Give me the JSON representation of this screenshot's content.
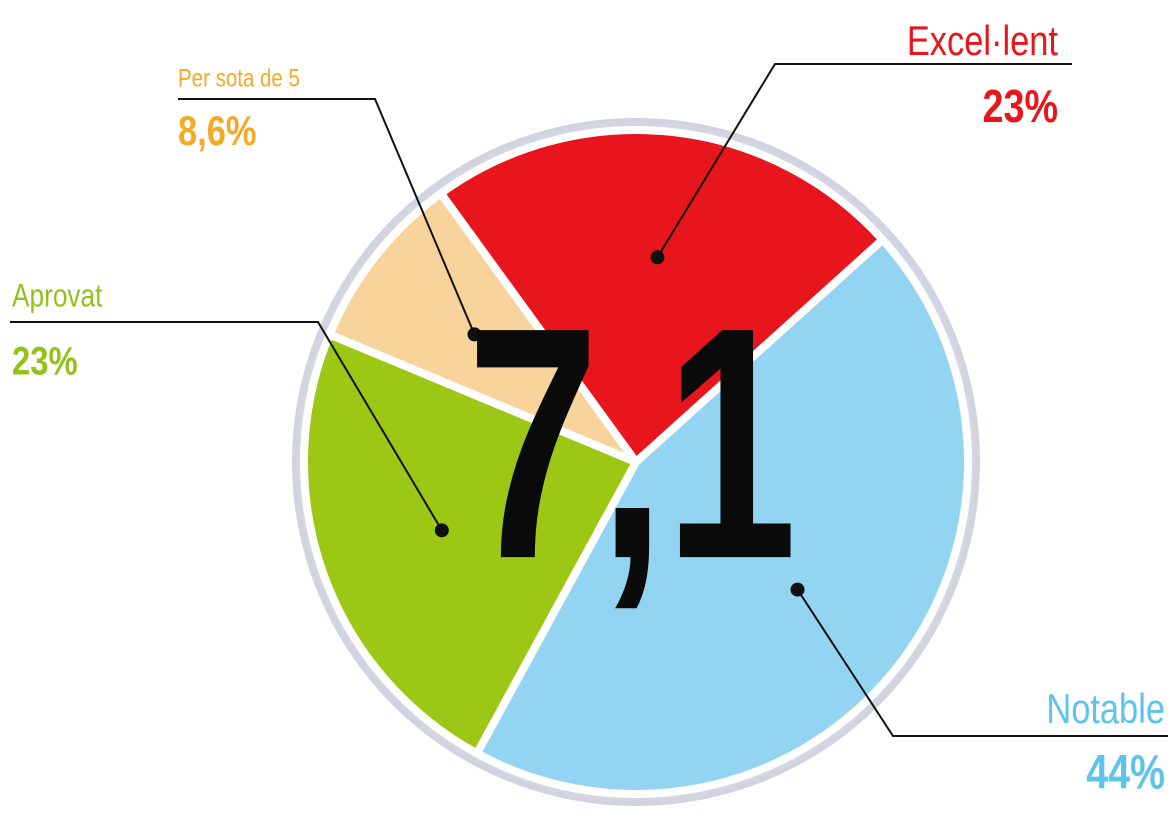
{
  "chart_data": {
    "type": "pie",
    "annotation": "7,1",
    "categories": [
      "Excel·lent",
      "Notable",
      "Aprovat",
      "Per sota de 5"
    ],
    "values": [
      23,
      44,
      23,
      8.6
    ],
    "value_labels": [
      "23%",
      "44%",
      "23%",
      "8,6%"
    ],
    "colors": [
      "#e8161c",
      "#92d4f2",
      "#9cc715",
      "#f8d39c"
    ],
    "label_colors": [
      "#e8161c",
      "#5cc4ea",
      "#94c11a",
      "#f4a928"
    ]
  }
}
